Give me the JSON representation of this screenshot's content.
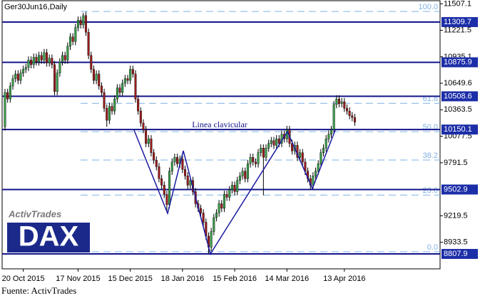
{
  "chart_data": {
    "type": "candlestick",
    "title": "Ger30Jun16,Daily",
    "categories": [
      null,
      null,
      null,
      null,
      null,
      null,
      null,
      "20 Oct 2015",
      null,
      null,
      null,
      null,
      null,
      null,
      null,
      null,
      null,
      null,
      null,
      null,
      null,
      null,
      null,
      null,
      null,
      null,
      null,
      null,
      "17 Nov 2015",
      null,
      null,
      null,
      null,
      null,
      null,
      null,
      null,
      null,
      null,
      null,
      null,
      null,
      null,
      null,
      null,
      null,
      null,
      null,
      "15 Dec 2015",
      null,
      null,
      null,
      null,
      null,
      null,
      null,
      null,
      null,
      null,
      null,
      null,
      null,
      null,
      null,
      null,
      null,
      null,
      null,
      "18 Jan 2016",
      null,
      null,
      null,
      null,
      null,
      null,
      null,
      null,
      null,
      null,
      null,
      null,
      null,
      null,
      null,
      null,
      null,
      null,
      null,
      "15 Feb 2016",
      null,
      null,
      null,
      null,
      null,
      null,
      null,
      null,
      null,
      null,
      null,
      null,
      null,
      null,
      null,
      null,
      null,
      null,
      null,
      "14 Mar 2016",
      null,
      null,
      null,
      null,
      null,
      null,
      null,
      null,
      null,
      null,
      null,
      null,
      null,
      null,
      null,
      null,
      null,
      null,
      null,
      null,
      null,
      "13 Apr 2016",
      null,
      null,
      null,
      null
    ],
    "open": [
      10180,
      10550,
      10480,
      10620,
      10700,
      10750,
      10680,
      10760,
      10800,
      10820,
      10900,
      10850,
      10930,
      10880,
      10950,
      10900,
      10980,
      10870,
      10920,
      10850,
      10560,
      10760,
      10880,
      10950,
      10900,
      11050,
      11150,
      11100,
      11250,
      11330,
      11280,
      11380,
      11200,
      10950,
      10800,
      10680,
      10750,
      10620,
      10550,
      10380,
      10250,
      10400,
      10350,
      10480,
      10600,
      10550,
      10650,
      10700,
      10680,
      10800,
      10750,
      10480,
      10350,
      10220,
      10150,
      10000,
      10050,
      9900,
      9820,
      9750,
      9620,
      9550,
      9450,
      9340,
      9700,
      9800,
      9850,
      9780,
      9830,
      9720,
      9650,
      9550,
      9600,
      9480,
      9350,
      9300,
      9250,
      9150,
      9000,
      8880,
      9050,
      9200,
      9250,
      9350,
      9300,
      9450,
      9420,
      9500,
      9550,
      9480,
      9600,
      9650,
      9700,
      9620,
      9780,
      9850,
      9800,
      9780,
      9900,
      9950,
      9850,
      9950,
      10000,
      10030,
      9980,
      10050,
      10000,
      10100,
      10050,
      10150,
      10000,
      9920,
      9980,
      9850,
      9900,
      9800,
      9700,
      9620,
      9550,
      9650,
      9700,
      9780,
      9900,
      9950,
      10050,
      10100,
      10150,
      10420,
      10480,
      10430,
      10450,
      10380,
      10350,
      10300,
      10280
    ],
    "high": [
      10590,
      10590,
      10660,
      10740,
      10790,
      10790,
      10800,
      10840,
      10860,
      10940,
      10940,
      10970,
      10970,
      10990,
      10990,
      11020,
      11020,
      10960,
      10960,
      10890,
      10800,
      10920,
      10990,
      10990,
      11090,
      11190,
      11190,
      11290,
      11370,
      11370,
      11410,
      11420,
      11240,
      10990,
      10840,
      10790,
      10790,
      10660,
      10590,
      10420,
      10440,
      10440,
      10520,
      10640,
      10640,
      10690,
      10740,
      10740,
      10840,
      10840,
      10790,
      10520,
      10390,
      10260,
      10190,
      10090,
      10090,
      9940,
      9860,
      9790,
      9660,
      9590,
      9490,
      9740,
      9840,
      9890,
      9890,
      9870,
      9870,
      9760,
      9690,
      9640,
      9640,
      9520,
      9390,
      9340,
      9290,
      9190,
      9040,
      9090,
      9240,
      9290,
      9390,
      9390,
      9490,
      9490,
      9540,
      9590,
      9590,
      9640,
      9690,
      9740,
      9740,
      9820,
      9890,
      9890,
      9840,
      9940,
      9990,
      9990,
      9990,
      10040,
      10070,
      10070,
      10090,
      10090,
      10140,
      10140,
      10190,
      10190,
      10040,
      10020,
      10020,
      9940,
      9940,
      9840,
      9740,
      9660,
      9690,
      9740,
      9820,
      9940,
      9990,
      10090,
      10140,
      10190,
      10460,
      10520,
      10520,
      10490,
      10490,
      10420,
      10390,
      10340,
      10320
    ],
    "low": [
      10140,
      10440,
      10440,
      10580,
      10660,
      10640,
      10640,
      10720,
      10760,
      10780,
      10810,
      10810,
      10840,
      10840,
      10860,
      10860,
      10830,
      10830,
      10810,
      10520,
      10520,
      10720,
      10840,
      10860,
      10860,
      11010,
      11060,
      11060,
      11210,
      11240,
      11240,
      11160,
      10910,
      10760,
      10640,
      10640,
      10580,
      10510,
      10340,
      10180,
      10210,
      10310,
      10310,
      10440,
      10510,
      10510,
      10610,
      10640,
      10640,
      10710,
      10440,
      10310,
      10180,
      10110,
      9960,
      9960,
      9860,
      9780,
      9710,
      9580,
      9510,
      9410,
      9260,
      9300,
      9660,
      9760,
      9740,
      9740,
      9680,
      9610,
      9510,
      9510,
      9440,
      9310,
      9260,
      9210,
      9110,
      8960,
      8810,
      8840,
      9010,
      9160,
      9210,
      9260,
      9260,
      9380,
      9380,
      9460,
      9440,
      9440,
      9560,
      9610,
      9580,
      9580,
      9740,
      9760,
      9740,
      9740,
      9860,
      9440,
      9810,
      9910,
      9960,
      9940,
      9940,
      9960,
      9960,
      10010,
      10010,
      9960,
      9880,
      9880,
      9810,
      9810,
      9760,
      9660,
      9580,
      9500,
      9510,
      9610,
      9660,
      9740,
      9860,
      9910,
      10010,
      10060,
      10110,
      10380,
      10390,
      10390,
      10340,
      10310,
      10260,
      10240,
      10190
    ],
    "close": [
      10550,
      10480,
      10620,
      10700,
      10750,
      10680,
      10760,
      10800,
      10820,
      10900,
      10850,
      10930,
      10880,
      10950,
      10900,
      10980,
      10870,
      10920,
      10850,
      10560,
      10760,
      10880,
      10950,
      10900,
      11050,
      11150,
      11100,
      11250,
      11330,
      11280,
      11380,
      11200,
      10950,
      10800,
      10680,
      10750,
      10620,
      10550,
      10380,
      10250,
      10400,
      10350,
      10480,
      10600,
      10550,
      10650,
      10700,
      10680,
      10800,
      10750,
      10480,
      10350,
      10220,
      10150,
      10000,
      10050,
      9900,
      9820,
      9750,
      9620,
      9550,
      9450,
      9340,
      9700,
      9800,
      9850,
      9780,
      9830,
      9720,
      9650,
      9550,
      9600,
      9480,
      9350,
      9300,
      9250,
      9150,
      9000,
      8880,
      9050,
      9200,
      9250,
      9350,
      9300,
      9450,
      9420,
      9500,
      9550,
      9480,
      9600,
      9650,
      9700,
      9620,
      9780,
      9850,
      9800,
      9780,
      9900,
      9950,
      9850,
      9950,
      10000,
      10030,
      9980,
      10050,
      10000,
      10100,
      10050,
      10150,
      10000,
      9920,
      9980,
      9850,
      9900,
      9800,
      9700,
      9620,
      9550,
      9650,
      9700,
      9780,
      9900,
      9950,
      10050,
      10100,
      10150,
      10420,
      10480,
      10430,
      10450,
      10380,
      10350,
      10300,
      10280,
      10230
    ],
    "up_color": "#3a9e4a",
    "down_color": "#9b1c1c",
    "wick_color": "#000000",
    "ylim": [
      8647,
      11548
    ],
    "yticks": [
      11507.1,
      11221.5,
      10935.1,
      10649.6,
      10363.5,
      10077.5,
      9791.5,
      9219.5,
      8933.5
    ],
    "levels": [
      11309.7,
      10875.9,
      10508.6,
      10150.1,
      9502.9,
      8807.9
    ],
    "level_color": "#14148c",
    "fib_high": 11424,
    "fib_low": 8831,
    "fib_color": "#7fb2e5",
    "fib_levels": [
      {
        "value": 100,
        "label": "100.0"
      },
      {
        "value": 61.8,
        "label": "61.8"
      },
      {
        "value": 50,
        "label": "50.0"
      },
      {
        "value": 38.2,
        "label": "38.2"
      },
      {
        "value": 23.6,
        "label": "23.6"
      },
      {
        "value": 0,
        "label": "0.0"
      }
    ],
    "annotation": "Linea clavicular"
  },
  "logo": {
    "brand": "ActivTrades",
    "index": "DAX"
  },
  "source": "Fuente: ActivTrades"
}
